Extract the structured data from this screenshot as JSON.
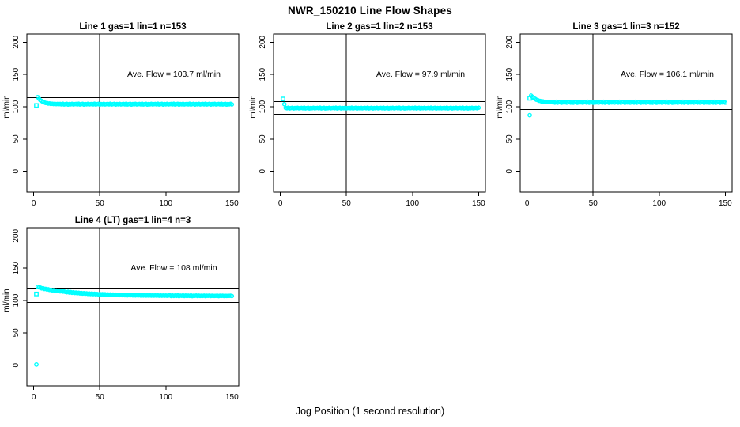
{
  "page": {
    "title": "NWR_150210  Line Flow Shapes",
    "xlabel": "Jog Position (1 second resolution)"
  },
  "style": {
    "point_color": "#00ffff",
    "line_color": "#000000",
    "background": "#ffffff",
    "point_marker": "open-circle",
    "first_point_marker": "open-square"
  },
  "axes": {
    "ylabel": "ml/min",
    "y_ticks": [
      0,
      50,
      100,
      150,
      200
    ],
    "x_ticks": [
      0,
      50,
      100,
      150
    ],
    "xlim": [
      -5.2,
      155.2
    ],
    "ylim": [
      -32.2,
      212.6
    ],
    "grid": false
  },
  "chart_data": [
    {
      "type": "scatter",
      "title": "Line 1 gas=1 lin=1 n=153",
      "gas": 1,
      "lin": 1,
      "n": 153,
      "annotation": "Ave. Flow =  103.7  ml/min",
      "ave_flow": 103.7,
      "tolerance_lines": [
        114.1,
        93.3
      ],
      "vline_x": 50,
      "first_point": {
        "x": 2,
        "y": 102,
        "marker": "square"
      },
      "outliers": [],
      "x_start": 3,
      "y": [
        115.0,
        112.4,
        110.1,
        108.9,
        107.3,
        106.8,
        105.8,
        105.7,
        104.9,
        105.1,
        104.4,
        104.7,
        104.2,
        104.5,
        104.1,
        104.4,
        104.0,
        104.4,
        103.7,
        104.6,
        103.5,
        104.1,
        104.5,
        103.4,
        104.2,
        103.8,
        104.5,
        103.6,
        104.0,
        104.4,
        103.7,
        104.6,
        103.5,
        104.1,
        104.5,
        103.4,
        104.2,
        103.8,
        104.5,
        103.6,
        104.0,
        104.4,
        103.7,
        104.6,
        103.5,
        104.1,
        104.5,
        103.4,
        104.2,
        103.8,
        104.5,
        103.6,
        104.0,
        104.4,
        103.7,
        104.6,
        103.5,
        104.1,
        104.5,
        103.4,
        104.2,
        103.8,
        104.5,
        103.6,
        104.0,
        104.4,
        103.7,
        104.6,
        103.5,
        104.1,
        104.5,
        103.4,
        104.2,
        103.8,
        104.5,
        103.6,
        104.0,
        104.4,
        103.7,
        104.6,
        103.5,
        104.1,
        104.5,
        103.4,
        104.2,
        103.8,
        104.5,
        103.6,
        104.0,
        104.4,
        103.7,
        104.6,
        103.5,
        104.1,
        104.5,
        103.4,
        104.2,
        103.8,
        104.5,
        103.6,
        104.0,
        104.4,
        103.7,
        104.6,
        103.5,
        104.1,
        104.5,
        103.4,
        104.2,
        103.8,
        104.5,
        103.6,
        104.0,
        104.4,
        103.7,
        104.6,
        103.5,
        104.1,
        104.5,
        103.4,
        104.2,
        103.8,
        104.5,
        103.6,
        104.0,
        104.4,
        103.7,
        104.6,
        103.5,
        104.1,
        104.5,
        103.4,
        104.2,
        103.8,
        104.5,
        103.6,
        104.0,
        104.4,
        103.7,
        104.6,
        103.5,
        104.1,
        104.5,
        103.4,
        104.2,
        103.8,
        104.5,
        103.6
      ]
    },
    {
      "type": "scatter",
      "title": "Line 2 gas=1 lin=2 n=153",
      "gas": 1,
      "lin": 2,
      "n": 153,
      "annotation": "Ave. Flow =  97.9  ml/min",
      "ave_flow": 97.9,
      "tolerance_lines": [
        107.7,
        88.1
      ],
      "vline_x": 50,
      "first_point": {
        "x": 2,
        "y": 112,
        "marker": "square"
      },
      "outliers": [],
      "x_start": 3,
      "y": [
        104.0,
        98.3,
        97.7,
        98.5,
        97.5,
        98.0,
        98.4,
        97.4,
        98.1,
        97.8,
        98.4,
        97.6,
        98.0,
        98.3,
        97.7,
        98.5,
        97.5,
        98.0,
        98.4,
        97.4,
        98.1,
        97.8,
        98.4,
        97.6,
        98.0,
        98.3,
        97.7,
        98.5,
        97.5,
        98.0,
        98.4,
        97.4,
        98.1,
        97.8,
        98.4,
        97.6,
        98.0,
        98.3,
        97.7,
        98.5,
        97.5,
        98.0,
        98.4,
        97.4,
        98.1,
        97.8,
        98.4,
        97.6,
        98.0,
        98.3,
        97.7,
        98.5,
        97.5,
        98.0,
        98.4,
        97.4,
        98.1,
        97.8,
        98.4,
        97.6,
        98.0,
        98.3,
        97.7,
        98.5,
        97.5,
        98.0,
        98.4,
        97.4,
        98.1,
        97.8,
        98.4,
        97.6,
        98.0,
        98.3,
        97.7,
        98.5,
        97.5,
        98.0,
        98.4,
        97.4,
        98.1,
        97.8,
        98.4,
        97.6,
        98.0,
        98.3,
        97.7,
        98.5,
        97.5,
        98.0,
        98.4,
        97.4,
        98.1,
        97.8,
        98.4,
        97.6,
        98.0,
        98.3,
        97.7,
        98.5,
        97.5,
        98.0,
        98.4,
        97.4,
        98.1,
        97.8,
        98.4,
        97.6,
        98.0,
        98.3,
        97.7,
        98.5,
        97.5,
        98.0,
        98.4,
        97.4,
        98.1,
        97.8,
        98.4,
        97.6,
        98.0,
        98.3,
        97.7,
        98.5,
        97.5,
        98.0,
        98.4,
        97.4,
        98.1,
        97.8,
        98.4,
        97.6,
        98.0,
        98.3,
        97.7,
        98.5,
        97.5,
        98.0,
        98.4,
        97.4,
        98.1,
        97.8,
        98.4,
        97.6,
        98.0,
        98.3,
        97.7,
        98.5
      ]
    },
    {
      "type": "scatter",
      "title": "Line 3 gas=1 lin=3 n=152",
      "gas": 1,
      "lin": 3,
      "n": 152,
      "annotation": "Ave. Flow =  106.1  ml/min",
      "ave_flow": 106.1,
      "tolerance_lines": [
        116.7,
        95.5
      ],
      "vline_x": 50,
      "first_point": {
        "x": 2,
        "y": 113,
        "marker": "square"
      },
      "outliers": [
        {
          "x": 2,
          "y": 87
        }
      ],
      "x_start": 3,
      "y": [
        117.2,
        115.4,
        113.6,
        112.4,
        110.9,
        110.3,
        109.2,
        109.0,
        108.1,
        108.3,
        107.5,
        107.8,
        107.2,
        107.6,
        107.1,
        107.4,
        107.0,
        107.3,
        106.4,
        107.7,
        106.2,
        106.9,
        107.4,
        106.1,
        107.0,
        106.6,
        107.5,
        106.3,
        106.8,
        107.3,
        106.4,
        107.7,
        106.2,
        106.9,
        107.4,
        106.1,
        107.0,
        106.6,
        107.5,
        106.3,
        106.8,
        107.3,
        106.4,
        107.7,
        106.2,
        106.9,
        107.4,
        106.1,
        107.0,
        106.6,
        107.5,
        106.3,
        106.8,
        107.3,
        106.4,
        107.7,
        106.2,
        106.9,
        107.4,
        106.1,
        107.0,
        106.6,
        107.5,
        106.3,
        106.8,
        107.3,
        106.4,
        107.7,
        106.2,
        106.9,
        107.4,
        106.1,
        107.0,
        106.6,
        107.5,
        106.3,
        106.8,
        107.3,
        106.4,
        107.7,
        106.2,
        106.9,
        107.4,
        106.1,
        107.0,
        106.6,
        107.5,
        106.3,
        106.8,
        107.3,
        106.4,
        107.7,
        106.2,
        106.9,
        107.4,
        106.1,
        107.0,
        106.6,
        107.5,
        106.3,
        106.8,
        107.3,
        106.4,
        107.7,
        106.2,
        106.9,
        107.4,
        106.1,
        107.0,
        106.6,
        107.5,
        106.3,
        106.8,
        107.3,
        106.4,
        107.7,
        106.2,
        106.9,
        107.4,
        106.1,
        107.0,
        106.6,
        107.5,
        106.3,
        106.8,
        107.3,
        106.4,
        107.7,
        106.2,
        106.9,
        107.4,
        106.1,
        107.0,
        106.6,
        107.5,
        106.3,
        106.8,
        107.3,
        106.4,
        107.7,
        106.2,
        106.9,
        107.4,
        106.1,
        107.0,
        106.6,
        107.5,
        106.3
      ]
    },
    {
      "type": "scatter",
      "title": "Line 4 (LT) gas=1 lin=4 n=3",
      "gas": 1,
      "lin": 4,
      "n": 3,
      "annotation": "Ave. Flow =  108  ml/min",
      "ave_flow": 108,
      "tolerance_lines": [
        118.8,
        97.2
      ],
      "vline_x": 50,
      "first_point": {
        "x": 2,
        "y": 110,
        "marker": "square"
      },
      "outliers": [
        {
          "x": 2,
          "y": 1
        }
      ],
      "x_start": 3,
      "y": [
        121.0,
        120.1,
        119.8,
        118.6,
        118.9,
        117.7,
        117.9,
        116.9,
        117.2,
        116.2,
        116.5,
        115.6,
        115.9,
        115.0,
        115.3,
        114.5,
        114.8,
        114.0,
        114.3,
        113.6,
        113.9,
        113.2,
        112.6,
        113.4,
        112.2,
        112.9,
        111.8,
        112.6,
        111.5,
        112.2,
        111.2,
        111.9,
        110.9,
        111.6,
        110.6,
        111.3,
        110.4,
        111.0,
        110.1,
        110.8,
        109.9,
        110.6,
        109.7,
        110.3,
        109.5,
        110.1,
        109.3,
        109.9,
        109.1,
        109.7,
        109.0,
        109.6,
        108.8,
        109.4,
        108.7,
        109.2,
        108.5,
        109.1,
        108.4,
        108.9,
        108.3,
        108.8,
        108.2,
        108.7,
        108.1,
        108.6,
        108.0,
        108.5,
        107.9,
        108.4,
        107.9,
        108.3,
        107.8,
        108.2,
        107.7,
        108.1,
        107.7,
        108.1,
        107.6,
        108.0,
        107.6,
        108.0,
        107.5,
        107.9,
        107.5,
        107.9,
        107.4,
        107.8,
        107.4,
        107.8,
        107.4,
        107.7,
        107.3,
        107.7,
        107.3,
        107.6,
        107.3,
        107.6,
        107.2,
        107.6,
        108.0,
        106.8,
        107.8,
        106.9,
        107.6,
        107.0,
        107.9,
        106.7,
        107.5,
        107.1,
        107.8,
        106.8,
        107.6,
        106.9,
        107.4,
        107.0,
        107.7,
        106.7,
        107.3,
        107.1,
        107.6,
        106.8,
        107.4,
        106.9,
        107.2,
        107.0,
        107.5,
        106.7,
        107.3,
        107.1,
        107.4,
        106.8,
        107.2,
        106.9,
        107.0,
        107.1,
        107.3,
        106.7,
        107.2,
        107.0,
        107.3,
        106.8,
        107.1,
        106.9,
        107.0,
        107.1,
        107.2,
        106.8
      ]
    }
  ]
}
